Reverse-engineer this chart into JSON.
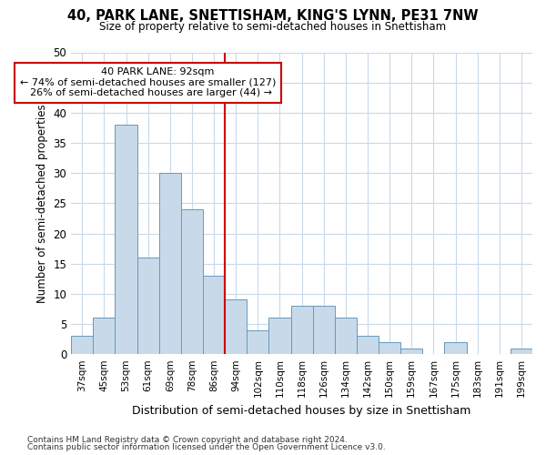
{
  "title_line1": "40, PARK LANE, SNETTISHAM, KING'S LYNN, PE31 7NW",
  "title_line2": "Size of property relative to semi-detached houses in Snettisham",
  "xlabel": "Distribution of semi-detached houses by size in Snettisham",
  "ylabel": "Number of semi-detached properties",
  "categories": [
    "37sqm",
    "45sqm",
    "53sqm",
    "61sqm",
    "69sqm",
    "78sqm",
    "86sqm",
    "94sqm",
    "102sqm",
    "110sqm",
    "118sqm",
    "126sqm",
    "134sqm",
    "142sqm",
    "150sqm",
    "159sqm",
    "167sqm",
    "175sqm",
    "183sqm",
    "191sqm",
    "199sqm"
  ],
  "values": [
    3,
    6,
    38,
    16,
    30,
    24,
    13,
    9,
    4,
    6,
    8,
    8,
    6,
    3,
    2,
    1,
    0,
    2,
    0,
    0,
    1
  ],
  "bar_color": "#c8daea",
  "bar_edge_color": "#6699bb",
  "highlight_label": "40 PARK LANE: 92sqm",
  "pct_smaller": 74,
  "n_smaller": 127,
  "pct_larger": 26,
  "n_larger": 44,
  "vline_index": 7,
  "ylim": [
    0,
    50
  ],
  "yticks": [
    0,
    5,
    10,
    15,
    20,
    25,
    30,
    35,
    40,
    45,
    50
  ],
  "background_color": "#ffffff",
  "grid_color": "#c8daea",
  "footer_line1": "Contains HM Land Registry data © Crown copyright and database right 2024.",
  "footer_line2": "Contains public sector information licensed under the Open Government Licence v3.0.",
  "annotation_box_color": "#ffffff",
  "annotation_box_edge": "#cc0000",
  "vline_color": "#cc0000"
}
